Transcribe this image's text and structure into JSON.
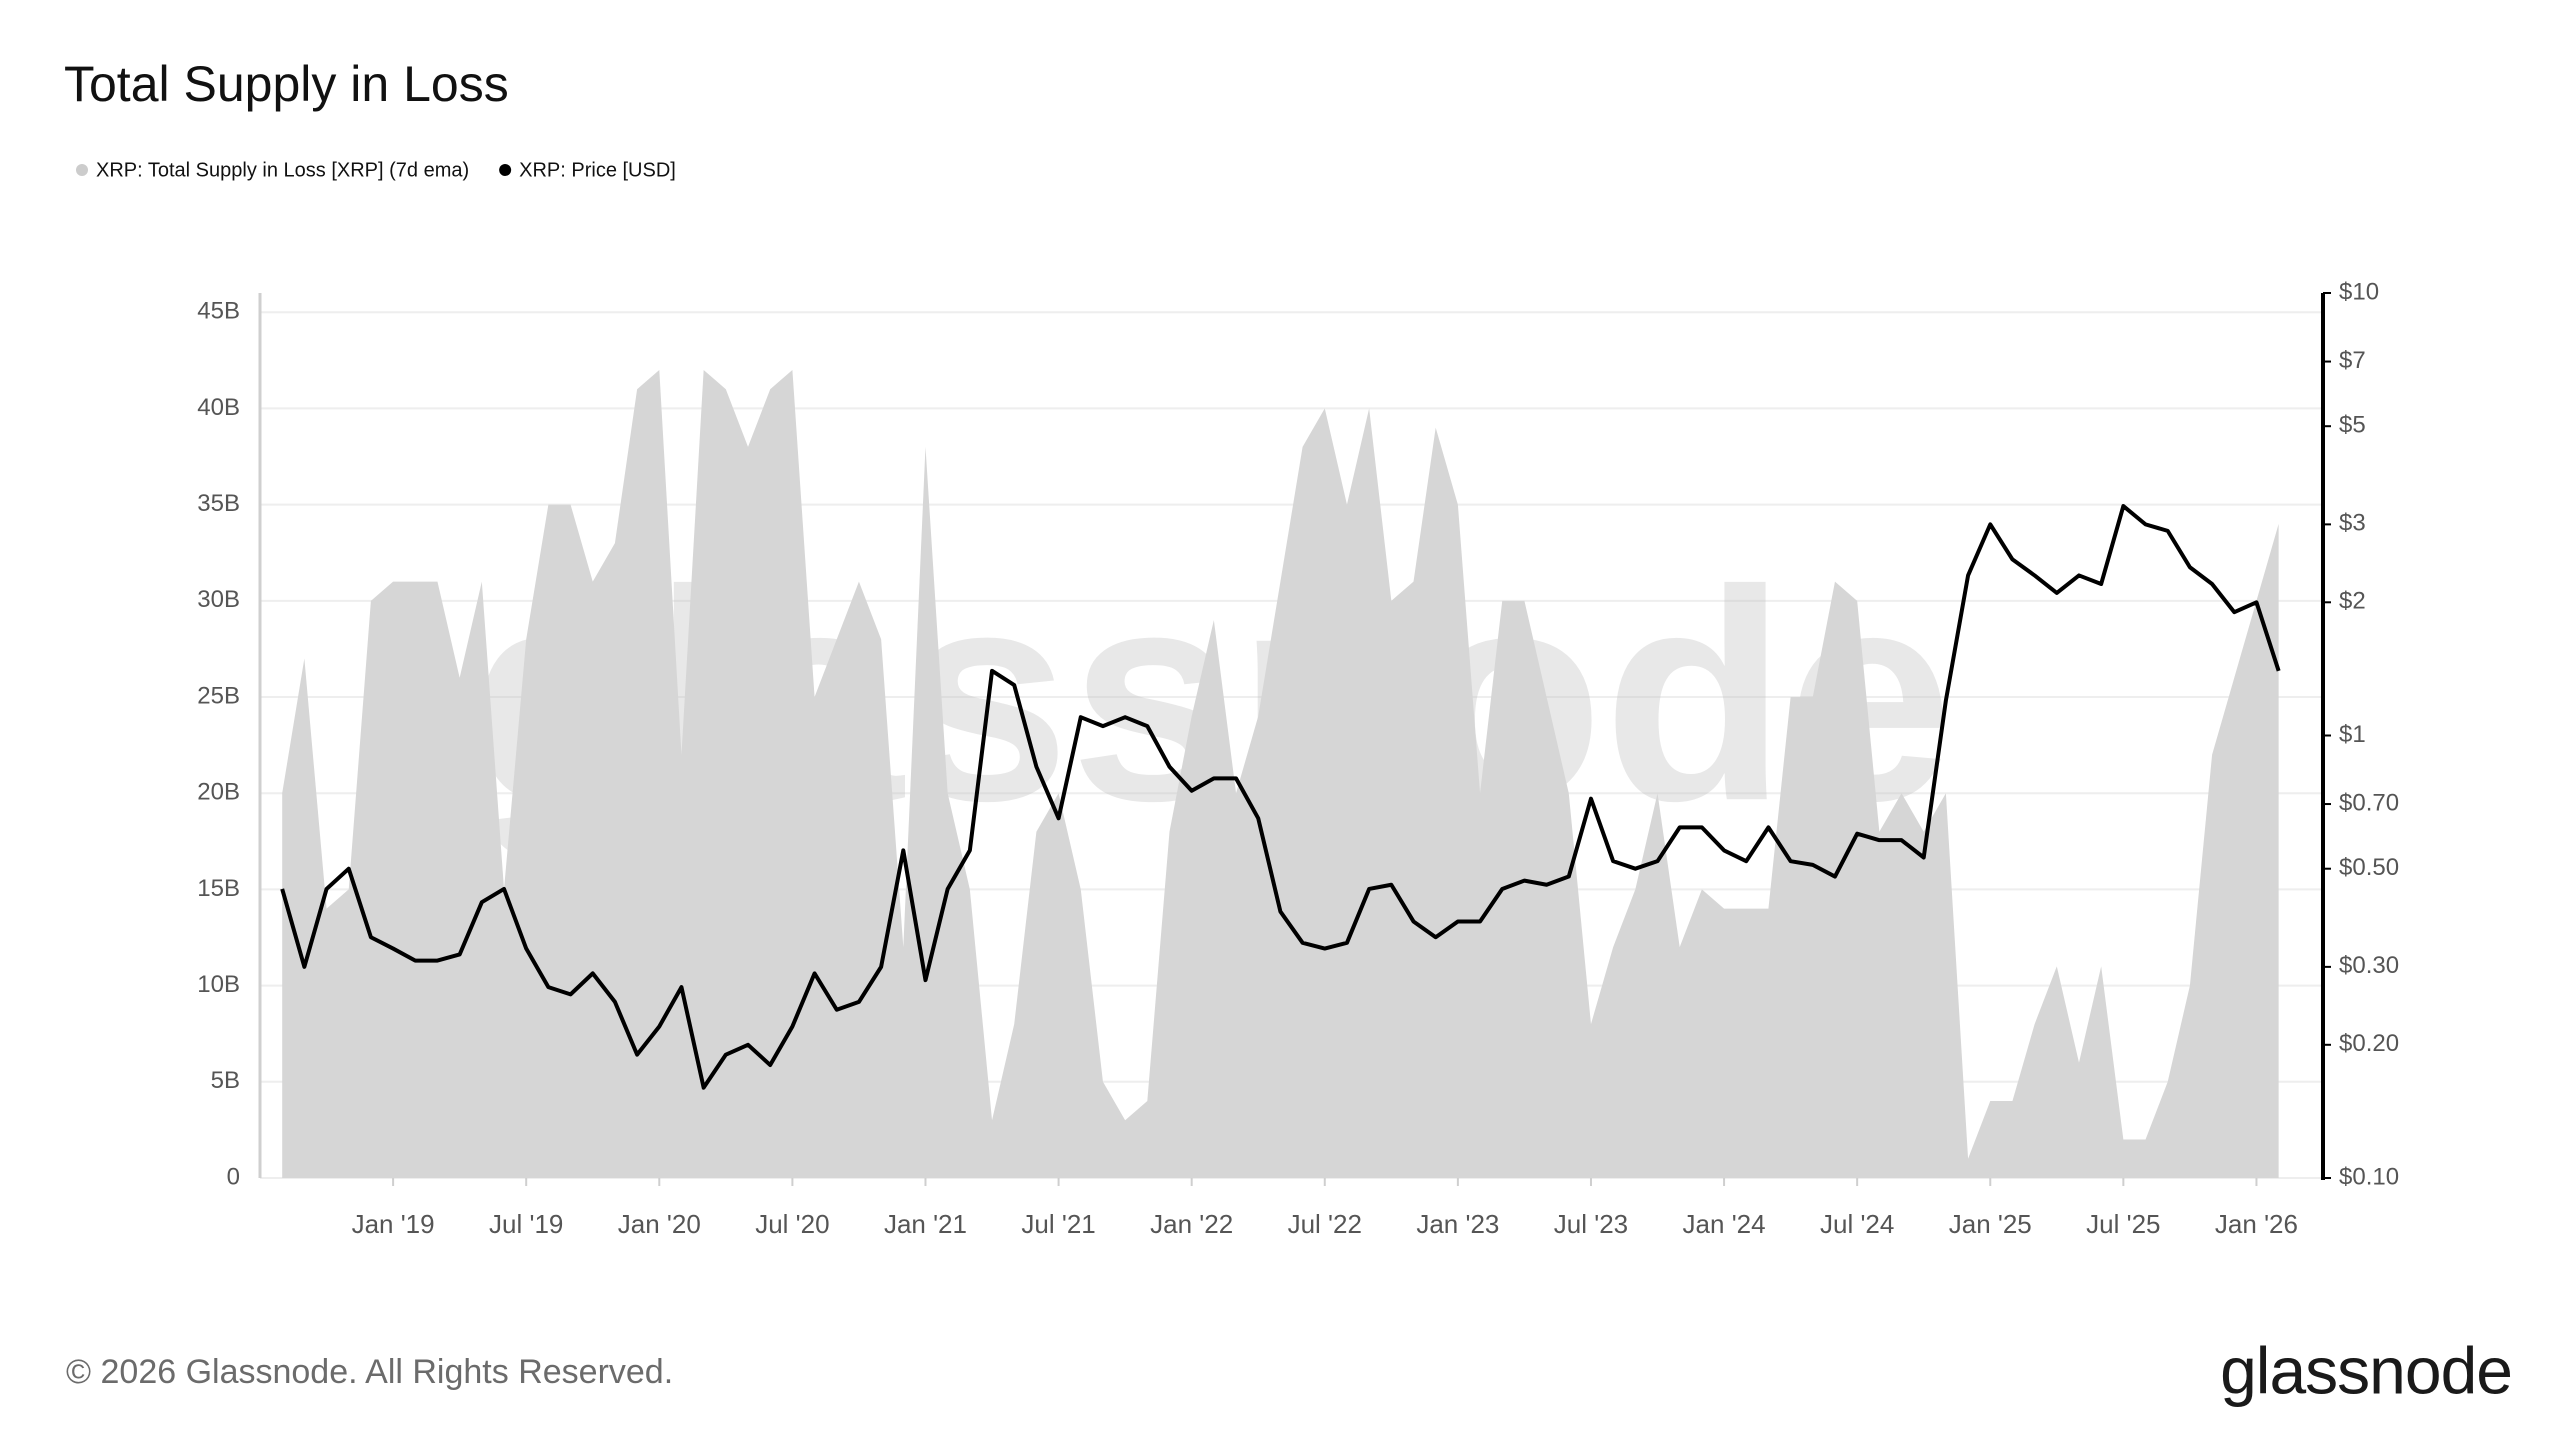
{
  "chart_data": {
    "type": "combo",
    "title": "Total Supply in Loss",
    "watermark": "glassnode",
    "x": [
      "2018-08",
      "2018-09",
      "2018-10",
      "2018-11",
      "2018-12",
      "2019-01",
      "2019-02",
      "2019-03",
      "2019-04",
      "2019-05",
      "2019-06",
      "2019-07",
      "2019-08",
      "2019-09",
      "2019-10",
      "2019-11",
      "2019-12",
      "2020-01",
      "2020-02",
      "2020-03",
      "2020-04",
      "2020-05",
      "2020-06",
      "2020-07",
      "2020-08",
      "2020-09",
      "2020-10",
      "2020-11",
      "2020-12",
      "2021-01",
      "2021-02",
      "2021-03",
      "2021-04",
      "2021-05",
      "2021-06",
      "2021-07",
      "2021-08",
      "2021-09",
      "2021-10",
      "2021-11",
      "2021-12",
      "2022-01",
      "2022-02",
      "2022-03",
      "2022-04",
      "2022-05",
      "2022-06",
      "2022-07",
      "2022-08",
      "2022-09",
      "2022-10",
      "2022-11",
      "2022-12",
      "2023-01",
      "2023-02",
      "2023-03",
      "2023-04",
      "2023-05",
      "2023-06",
      "2023-07",
      "2023-08",
      "2023-09",
      "2023-10",
      "2023-11",
      "2023-12",
      "2024-01",
      "2024-02",
      "2024-03",
      "2024-04",
      "2024-05",
      "2024-06",
      "2024-07",
      "2024-08",
      "2024-09",
      "2024-10",
      "2024-11",
      "2024-12",
      "2025-01",
      "2025-02",
      "2025-03",
      "2025-04",
      "2025-05",
      "2025-06",
      "2025-07",
      "2025-08",
      "2025-09",
      "2025-10",
      "2025-11",
      "2025-12",
      "2026-01",
      "2026-02"
    ],
    "series": [
      {
        "name": "XRP: Total Supply in Loss [XRP] (7d ema)",
        "type": "area",
        "axis": "y",
        "color": "#d6d6d6",
        "values": [
          20,
          27,
          14,
          15,
          30,
          31,
          31,
          31,
          26,
          31,
          15,
          28,
          35,
          35,
          31,
          33,
          41,
          42,
          22,
          42,
          41,
          38,
          41,
          42,
          25,
          28,
          31,
          28,
          12,
          38,
          20,
          15,
          3,
          8,
          18,
          20,
          15,
          5,
          3,
          4,
          18,
          24,
          29,
          20,
          24,
          31,
          38,
          40,
          35,
          40,
          30,
          31,
          39,
          35,
          20,
          30,
          30,
          25,
          20,
          8,
          12,
          15,
          20,
          12,
          15,
          14,
          14,
          14,
          25,
          25,
          31,
          30,
          18,
          20,
          18,
          20,
          1,
          4,
          4,
          8,
          11,
          6,
          11,
          2,
          2,
          5,
          10,
          22,
          26,
          30,
          34
        ]
      },
      {
        "name": "XRP: Price [USD]",
        "type": "line",
        "axis": "y2",
        "color": "#000000",
        "values": [
          0.45,
          0.3,
          0.45,
          0.5,
          0.35,
          0.33,
          0.31,
          0.31,
          0.32,
          0.42,
          0.45,
          0.33,
          0.27,
          0.26,
          0.29,
          0.25,
          0.19,
          0.22,
          0.27,
          0.16,
          0.19,
          0.2,
          0.18,
          0.22,
          0.29,
          0.24,
          0.25,
          0.3,
          0.55,
          0.28,
          0.45,
          0.55,
          1.4,
          1.3,
          0.85,
          0.65,
          1.1,
          1.05,
          1.1,
          1.05,
          0.85,
          0.75,
          0.8,
          0.8,
          0.65,
          0.4,
          0.34,
          0.33,
          0.34,
          0.45,
          0.46,
          0.38,
          0.35,
          0.38,
          0.38,
          0.45,
          0.47,
          0.46,
          0.48,
          0.72,
          0.52,
          0.5,
          0.52,
          0.62,
          0.62,
          0.55,
          0.52,
          0.62,
          0.52,
          0.51,
          0.48,
          0.6,
          0.58,
          0.58,
          0.53,
          1.2,
          2.3,
          3.0,
          2.5,
          2.3,
          2.1,
          2.3,
          2.2,
          3.3,
          3.0,
          2.9,
          2.4,
          2.2,
          1.9,
          2.0,
          1.4
        ]
      }
    ],
    "xlim": [
      "2018-07",
      "2026-04"
    ],
    "xticks": [
      {
        "value": "2019-01",
        "label": "Jan '19"
      },
      {
        "value": "2019-07",
        "label": "Jul '19"
      },
      {
        "value": "2020-01",
        "label": "Jan '20"
      },
      {
        "value": "2020-07",
        "label": "Jul '20"
      },
      {
        "value": "2021-01",
        "label": "Jan '21"
      },
      {
        "value": "2021-07",
        "label": "Jul '21"
      },
      {
        "value": "2022-01",
        "label": "Jan '22"
      },
      {
        "value": "2022-07",
        "label": "Jul '22"
      },
      {
        "value": "2023-01",
        "label": "Jan '23"
      },
      {
        "value": "2023-07",
        "label": "Jul '23"
      },
      {
        "value": "2024-01",
        "label": "Jan '24"
      },
      {
        "value": "2024-07",
        "label": "Jul '24"
      },
      {
        "value": "2025-01",
        "label": "Jan '25"
      },
      {
        "value": "2025-07",
        "label": "Jul '25"
      },
      {
        "value": "2026-01",
        "label": "Jan '26"
      }
    ],
    "ylim": [
      0,
      46
    ],
    "yticks": [
      0,
      {
        "value": 5,
        "label": "5B"
      },
      {
        "value": 10,
        "label": "10B"
      },
      {
        "value": 15,
        "label": "15B"
      },
      {
        "value": 20,
        "label": "20B"
      },
      {
        "value": 25,
        "label": "25B"
      },
      {
        "value": 30,
        "label": "30B"
      },
      {
        "value": 35,
        "label": "35B"
      },
      {
        "value": 40,
        "label": "40B"
      },
      {
        "value": 45,
        "label": "45B"
      }
    ],
    "y2lim": [
      0.1,
      10
    ],
    "y2log": true,
    "y2ticks": [
      {
        "value": 0.1,
        "label": "$0.10"
      },
      {
        "value": 0.2,
        "label": "$0.20"
      },
      {
        "value": 0.3,
        "label": "$0.30"
      },
      {
        "value": 0.5,
        "label": "$0.50"
      },
      {
        "value": 0.7,
        "label": "$0.70"
      },
      {
        "value": 1,
        "label": "$1"
      },
      {
        "value": 2,
        "label": "$2"
      },
      {
        "value": 3,
        "label": "$3"
      },
      {
        "value": 5,
        "label": "$5"
      },
      {
        "value": 7,
        "label": "$7"
      },
      {
        "value": 10,
        "label": "$10"
      }
    ],
    "grid": true
  },
  "footer": {
    "copyright": "© 2026 Glassnode. All Rights Reserved.",
    "brand": "glassnode"
  }
}
